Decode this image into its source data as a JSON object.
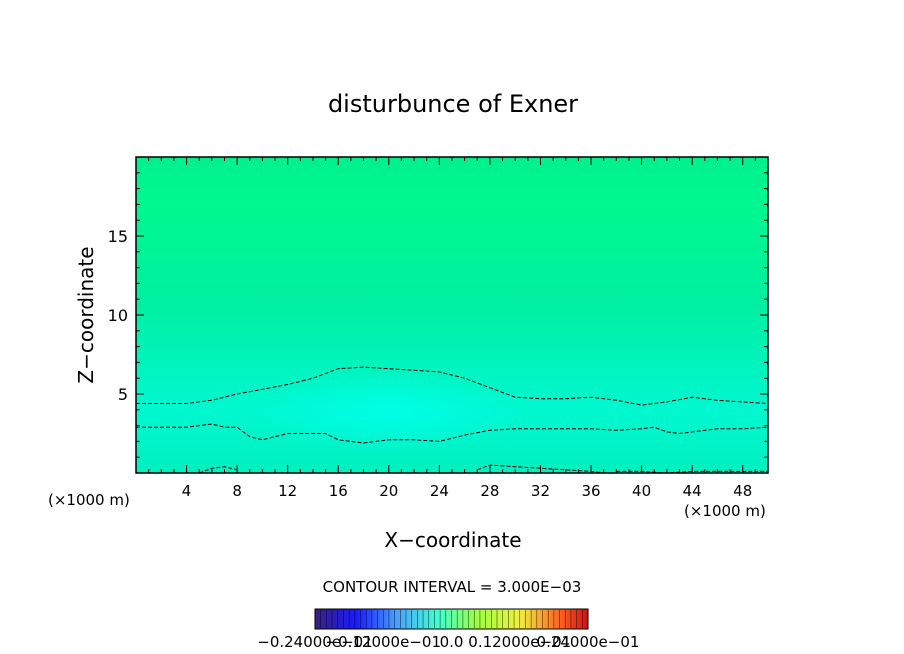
{
  "chart_data": {
    "type": "heatmap",
    "title": "disturbunce of Exner",
    "xlabel": "X−coordinate",
    "ylabel": "Z−coordinate",
    "x_unit_left": "(×1000 m)",
    "x_unit_right": "(×1000 m)",
    "xlim": [
      0,
      50
    ],
    "ylim": [
      0,
      20
    ],
    "x_ticks": [
      "4",
      "8",
      "12",
      "16",
      "20",
      "24",
      "28",
      "32",
      "36",
      "40",
      "44",
      "48"
    ],
    "y_ticks": [
      "5",
      "10",
      "15"
    ],
    "contour_interval_text": "CONTOUR INTERVAL = 3.000E−03",
    "colorbar_labels": [
      "−0.24000e−01",
      "−0.12000e−01",
      "0.0",
      "0.12000e−01",
      "0.24000e−01"
    ],
    "contour_lines": [
      {
        "x": [
          0,
          4,
          6,
          8,
          10,
          12,
          14,
          16,
          18,
          20,
          22,
          24,
          26,
          28,
          30,
          32,
          34,
          36,
          38,
          40,
          42,
          44,
          46,
          48,
          50
        ],
        "y": [
          4.4,
          4.4,
          4.6,
          5.0,
          5.3,
          5.6,
          6.0,
          6.6,
          6.7,
          6.6,
          6.5,
          6.4,
          6.0,
          5.4,
          4.8,
          4.7,
          4.7,
          4.8,
          4.6,
          4.3,
          4.5,
          4.8,
          4.6,
          4.5,
          4.4
        ]
      },
      {
        "x": [
          0,
          4,
          5,
          6,
          7,
          8,
          9,
          10,
          12,
          14,
          15,
          16,
          18,
          20,
          22,
          24,
          26,
          28,
          30,
          32,
          34,
          36,
          38,
          40,
          41,
          42,
          43,
          44,
          46,
          48,
          50
        ],
        "y": [
          2.9,
          2.9,
          3.0,
          3.1,
          2.9,
          2.9,
          2.3,
          2.1,
          2.5,
          2.5,
          2.5,
          2.1,
          1.9,
          2.1,
          2.1,
          2.0,
          2.4,
          2.7,
          2.8,
          2.8,
          2.8,
          2.8,
          2.7,
          2.8,
          2.9,
          2.6,
          2.5,
          2.6,
          2.8,
          2.8,
          2.9
        ]
      },
      {
        "x": [
          5,
          6,
          7,
          8
        ],
        "y": [
          0.0,
          0.3,
          0.4,
          0.2
        ]
      },
      {
        "x": [
          27,
          28,
          30,
          32,
          34,
          36,
          37
        ],
        "y": [
          0.2,
          0.5,
          0.4,
          0.3,
          0.2,
          0.1,
          0.0
        ]
      },
      {
        "x": [
          38,
          40,
          42,
          44,
          46,
          48,
          50
        ],
        "y": [
          0.1,
          0.1,
          0.0,
          0.1,
          0.1,
          0.1,
          0.1
        ]
      }
    ]
  }
}
